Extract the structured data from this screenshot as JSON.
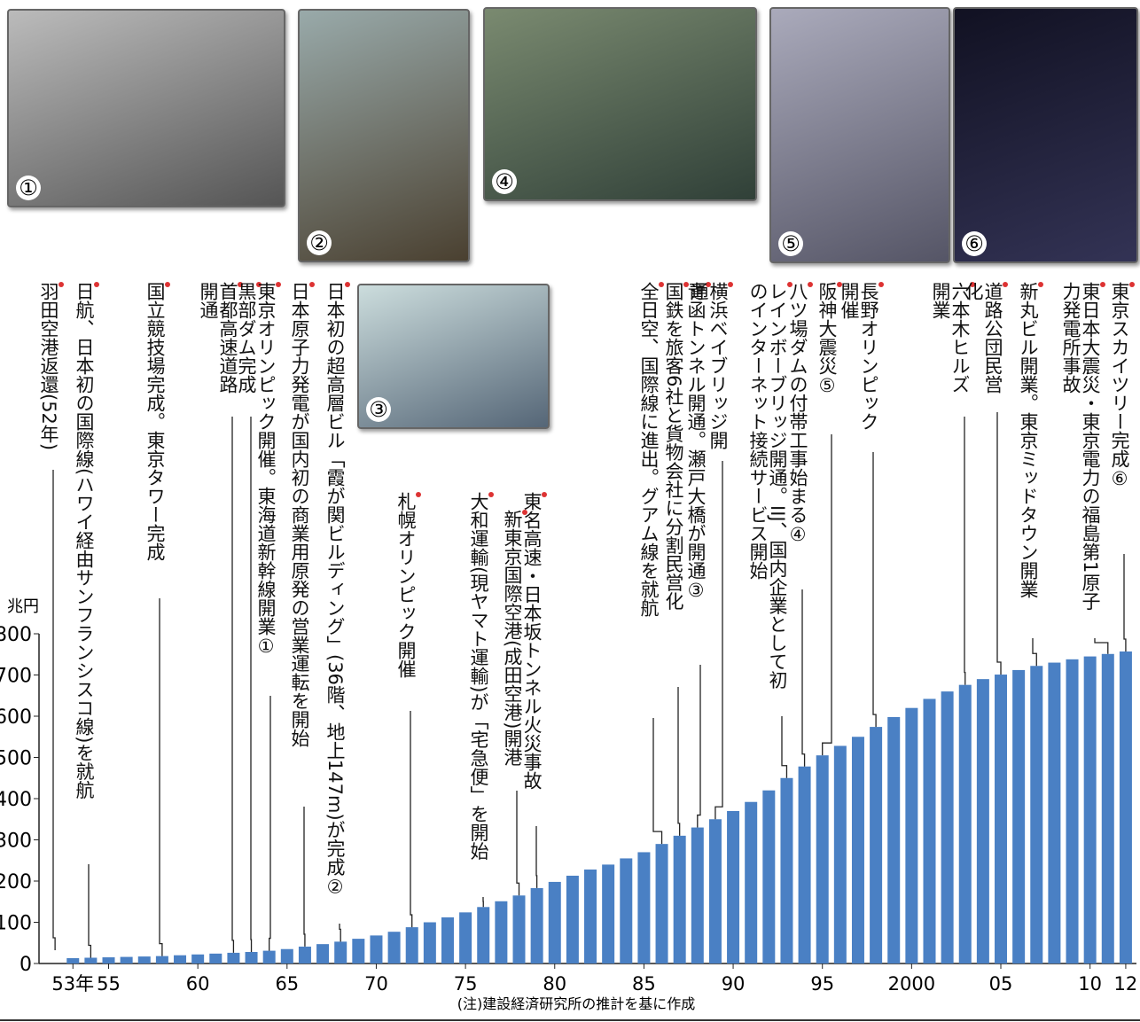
{
  "chart_data": {
    "type": "bar",
    "unit": "兆円",
    "note": "(注)建設経済研究所の推計を基に作成",
    "x": [
      1953,
      1954,
      1955,
      1956,
      1957,
      1958,
      1959,
      1960,
      1961,
      1962,
      1963,
      1964,
      1965,
      1966,
      1967,
      1968,
      1969,
      1970,
      1971,
      1972,
      1973,
      1974,
      1975,
      1976,
      1977,
      1978,
      1979,
      1980,
      1981,
      1982,
      1983,
      1984,
      1985,
      1986,
      1987,
      1988,
      1989,
      1990,
      1991,
      1992,
      1993,
      1994,
      1995,
      1996,
      1997,
      1998,
      1999,
      2000,
      2001,
      2002,
      2003,
      2004,
      2005,
      2006,
      2007,
      2008,
      2009,
      2010,
      2011,
      2012
    ],
    "values": [
      13,
      14,
      15,
      16,
      17,
      18,
      20,
      22,
      24,
      26,
      28,
      31,
      35,
      41,
      47,
      53,
      60,
      68,
      77,
      88,
      100,
      112,
      124,
      137,
      151,
      165,
      183,
      198,
      213,
      228,
      240,
      255,
      270,
      290,
      310,
      330,
      350,
      370,
      392,
      420,
      450,
      478,
      505,
      528,
      550,
      574,
      598,
      620,
      642,
      660,
      676,
      690,
      701,
      712,
      722,
      730,
      738,
      745,
      751,
      757
    ],
    "color": "#4a80c4",
    "xlim": [
      1951.1,
      2012.6
    ],
    "xticks": [
      {
        "value": 1953,
        "label": "53年"
      },
      {
        "value": 1955,
        "label": "55"
      },
      {
        "value": 1960,
        "label": "60"
      },
      {
        "value": 1965,
        "label": "65"
      },
      {
        "value": 1970,
        "label": "70"
      },
      {
        "value": 1975,
        "label": "75"
      },
      {
        "value": 1980,
        "label": "80"
      },
      {
        "value": 1985,
        "label": "85"
      },
      {
        "value": 1990,
        "label": "90"
      },
      {
        "value": 1995,
        "label": "95"
      },
      2000,
      {
        "value": 2005,
        "label": "05"
      },
      {
        "value": 2010,
        "label": "10"
      },
      {
        "value": 2012,
        "label": "12"
      }
    ],
    "ylim": [
      0,
      800
    ],
    "yticks": [
      0,
      100,
      200,
      300,
      400,
      500,
      600,
      700,
      800
    ],
    "events": [
      {
        "year": 1952,
        "label": "羽田空港返還(52年)"
      },
      {
        "year": 1954,
        "label": "日航、日本初の国際線(ハワイ経由サンフランシスコ線)を就航"
      },
      {
        "year": 1958,
        "label": "国立競技場完成。東京タワー完成"
      },
      {
        "year": 1962,
        "label": "首都高速道路開通"
      },
      {
        "year": 1963,
        "label": "黒部ダム完成"
      },
      {
        "year": 1964,
        "label": "東京オリンピック開催。東海道新幹線開業①"
      },
      {
        "year": 1966,
        "label": "日本原子力発電が国内初の商業用原発の営業運転を開始"
      },
      {
        "year": 1968,
        "label": "日本初の超高層ビル「霞が関ビルディング」(36階、地上147m)が完成②"
      },
      {
        "year": 1972,
        "label": "札幌オリンピック開催"
      },
      {
        "year": 1976,
        "label": "大和運輸(現ヤマト運輸)が「宅急便」を開始"
      },
      {
        "year": 1978,
        "label": "新東京国際空港(成田空港)開港"
      },
      {
        "year": 1979,
        "label": "東名高速・日本坂トンネル火災事故"
      },
      {
        "year": 1986,
        "label": "全日空、国際線に進出。グアム線を就航"
      },
      {
        "year": 1987,
        "label": "国鉄を旅客6社と貨物会社に分割民営化"
      },
      {
        "year": 1988,
        "label": "青函トンネル開通。瀬戸大橋が開通③"
      },
      {
        "year": 1989,
        "label": "横浜ベイブリッジ開通"
      },
      {
        "year": 1993,
        "label": "レインボーブリッジ開通。IIJ、国内企業として初のインターネット接続サービス開始"
      },
      {
        "year": 1994,
        "label": "八ツ場ダムの付帯工事始まる④"
      },
      {
        "year": 1995,
        "label": "阪神大震災⑤"
      },
      {
        "year": 1998,
        "label": "長野オリンピック開催"
      },
      {
        "year": 2003,
        "label": "六本木ヒルズ開業"
      },
      {
        "year": 2005,
        "label": "道路公団民営化"
      },
      {
        "year": 2007,
        "label": "新丸ビル開業。東京ミッドタウン開業"
      },
      {
        "year": 2011,
        "label": "東日本大震災・東京電力の福島第1原子力発電所事故"
      },
      {
        "year": 2012,
        "label": "東京スカイツリー完成⑥"
      }
    ],
    "photos": [
      "①",
      "②",
      "③",
      "④",
      "⑤",
      "⑥"
    ]
  }
}
